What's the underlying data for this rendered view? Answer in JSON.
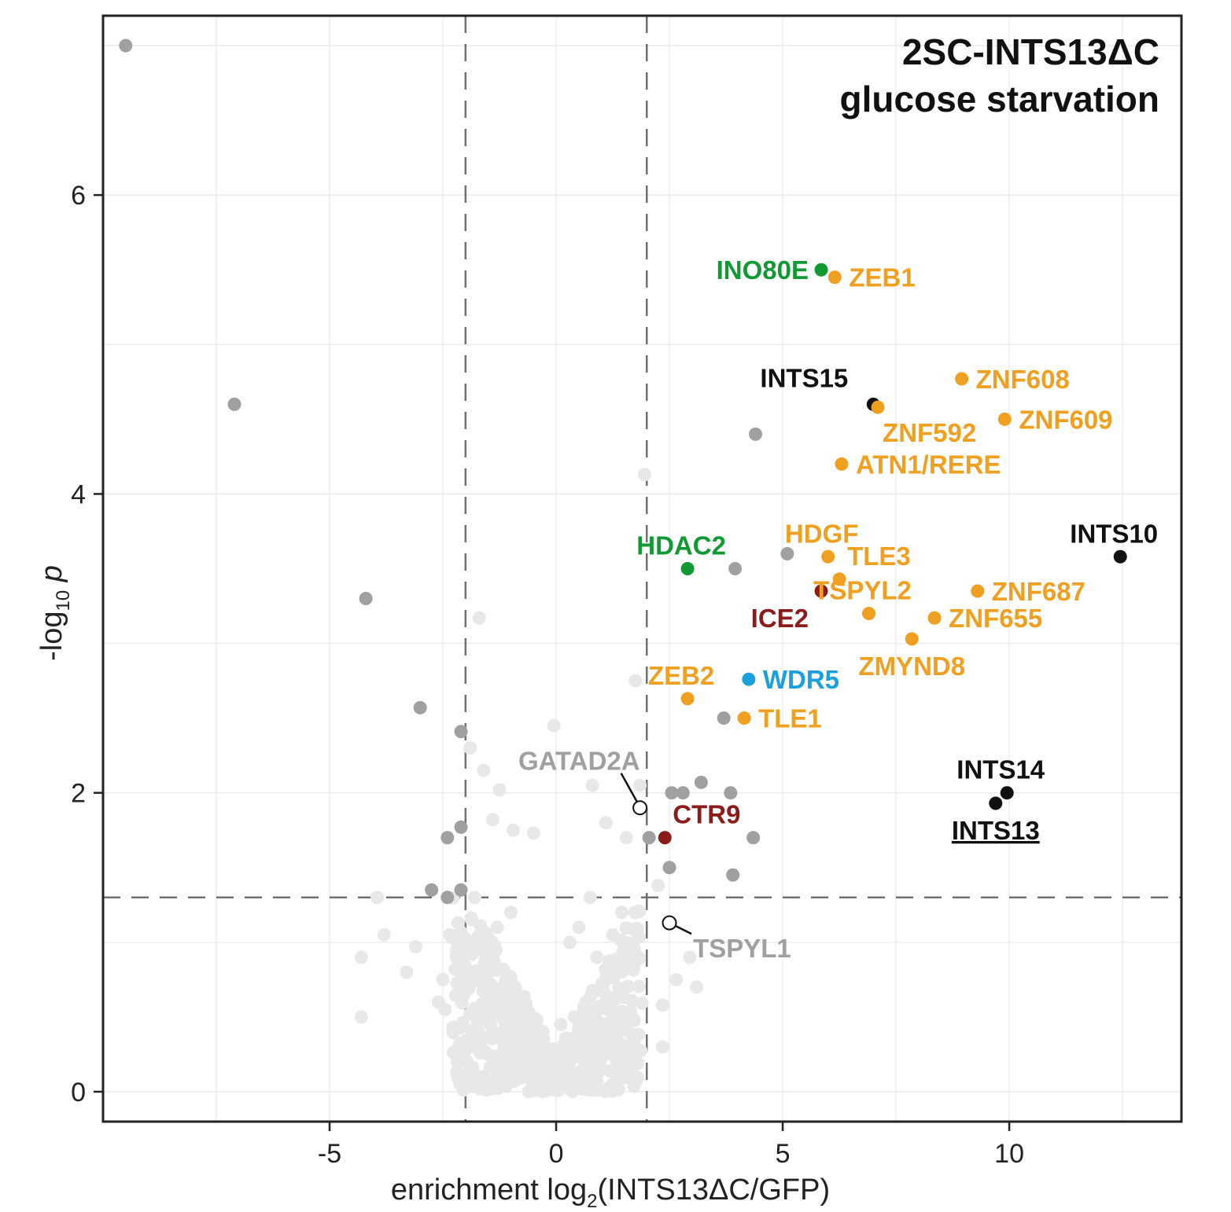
{
  "chart_data": {
    "type": "scatter",
    "title_lines": [
      "2SC-INTS13ΔC",
      "glucose starvation"
    ],
    "xlabel": {
      "main": "enrichment log",
      "sub": "2",
      "rest": "(INTS13ΔC/GFP)"
    },
    "ylabel": {
      "pre": "-log",
      "sub": "10",
      "post": " p"
    },
    "xlim": [
      -10,
      13.8
    ],
    "ylim": [
      -0.2,
      7.2
    ],
    "x_ticks": [
      {
        "value": -5,
        "label": "-5"
      },
      {
        "value": 0,
        "label": "0"
      },
      {
        "value": 5,
        "label": "5"
      },
      {
        "value": 10,
        "label": "10"
      }
    ],
    "y_ticks": [
      {
        "value": 0,
        "label": "0"
      },
      {
        "value": 2,
        "label": "2"
      },
      {
        "value": 4,
        "label": "4"
      },
      {
        "value": 6,
        "label": "6"
      }
    ],
    "grid": true,
    "thresholds": {
      "x": [
        -2,
        2
      ],
      "y": 1.3
    },
    "colors": {
      "background_points": "#e8e8e8",
      "sig_gray": "#a0a0a0",
      "black": "#111111",
      "orange": "#f0a020",
      "green": "#119933",
      "blue": "#1aa0dc",
      "red": "#8b1c1c",
      "label_gray": "#a0a0a0",
      "threshold_line": "#707070",
      "grid": "#ececec"
    },
    "gray_points": [
      [
        -9.5,
        7.0
      ],
      [
        -7.1,
        4.6
      ],
      [
        -4.2,
        3.3
      ],
      [
        -3.0,
        2.57
      ],
      [
        -2.1,
        2.41
      ],
      [
        -2.1,
        1.77
      ],
      [
        -2.4,
        1.7
      ],
      [
        -2.75,
        1.35
      ],
      [
        -2.4,
        1.3
      ],
      [
        -2.1,
        1.35
      ],
      [
        2.05,
        1.7
      ],
      [
        2.5,
        1.5
      ],
      [
        2.55,
        2.0
      ],
      [
        2.8,
        2.0
      ],
      [
        3.2,
        2.07
      ],
      [
        3.85,
        2.0
      ],
      [
        4.35,
        1.7
      ],
      [
        3.9,
        1.45
      ],
      [
        3.7,
        2.5
      ],
      [
        3.95,
        3.5
      ],
      [
        5.1,
        3.6
      ],
      [
        4.4,
        4.4
      ]
    ],
    "background_points": [
      [
        -1.7,
        3.17
      ],
      [
        1.75,
        2.75
      ],
      [
        1.95,
        4.13
      ],
      [
        -1.9,
        2.3
      ],
      [
        -1.6,
        2.15
      ],
      [
        -1.25,
        2.02
      ],
      [
        -0.05,
        2.45
      ],
      [
        0.8,
        2.05
      ],
      [
        1.85,
        2.05
      ],
      [
        1.1,
        1.8
      ],
      [
        -1.4,
        1.82
      ],
      [
        -0.95,
        1.75
      ],
      [
        -0.5,
        1.73
      ],
      [
        0.75,
        1.3
      ],
      [
        1.55,
        1.7
      ],
      [
        2.25,
        1.38
      ],
      [
        1.45,
        1.2
      ],
      [
        2.95,
        0.9
      ],
      [
        2.65,
        0.75
      ],
      [
        3.1,
        0.7
      ],
      [
        2.35,
        0.58
      ],
      [
        2.35,
        0.3
      ],
      [
        1.65,
        0.5
      ],
      [
        -4.3,
        0.5
      ],
      [
        -4.3,
        0.9
      ],
      [
        -3.95,
        1.3
      ],
      [
        -3.8,
        1.05
      ],
      [
        -3.3,
        0.8
      ],
      [
        -3.1,
        0.97
      ],
      [
        -2.35,
        1.05
      ],
      [
        -2.5,
        0.75
      ],
      [
        -2.45,
        0.55
      ],
      [
        -1.3,
        1.1
      ],
      [
        -1.0,
        1.2
      ],
      [
        0.5,
        1.1
      ],
      [
        0.3,
        1.0
      ],
      [
        1.25,
        1.05
      ],
      [
        -2.2,
        0.9
      ],
      [
        -2.6,
        0.6
      ],
      [
        1.1,
        0.6
      ],
      [
        1.7,
        0.25
      ],
      [
        -0.1,
        0.2
      ],
      [
        -1.8,
        1.3
      ],
      [
        -1.9,
        1.0
      ],
      [
        -1.5,
        0.8
      ],
      [
        -1.6,
        0.55
      ],
      [
        1.3,
        0.3
      ],
      [
        0.9,
        0.9
      ],
      [
        0.4,
        0.5
      ],
      [
        -0.6,
        0.4
      ],
      [
        -0.9,
        0.7
      ],
      [
        0.3,
        0.2
      ],
      [
        0.1,
        0.45
      ]
    ],
    "highlight_points": [
      {
        "gene": "INO80E",
        "x": 5.85,
        "y": 5.5,
        "color": "green",
        "label_side": "left"
      },
      {
        "gene": "ZEB1",
        "x": 6.15,
        "y": 5.45,
        "color": "orange",
        "label_side": "right"
      },
      {
        "gene": "INTS15",
        "x": 7.0,
        "y": 4.6,
        "color": "black",
        "label_side": "above-left"
      },
      {
        "gene": "ZNF608",
        "x": 8.95,
        "y": 4.77,
        "color": "orange",
        "label_side": "right"
      },
      {
        "gene": "ZNF592",
        "x": 7.1,
        "y": 4.58,
        "color": "orange",
        "label_side": "below-right"
      },
      {
        "gene": "ZNF609",
        "x": 9.9,
        "y": 4.5,
        "color": "orange",
        "label_side": "right"
      },
      {
        "gene": "ATN1/RERE",
        "x": 6.3,
        "y": 4.2,
        "color": "orange",
        "label_side": "right"
      },
      {
        "gene": "INTS10",
        "x": 12.45,
        "y": 3.58,
        "color": "black",
        "label_side": "above"
      },
      {
        "gene": "HDGF",
        "x": 6.0,
        "y": 3.58,
        "color": "orange",
        "label_side": "above"
      },
      {
        "gene": "TLE3",
        "x": 6.25,
        "y": 3.43,
        "color": "orange",
        "label_side": "above-right"
      },
      {
        "gene": "HDAC2",
        "x": 2.9,
        "y": 3.5,
        "color": "green",
        "label_side": "above"
      },
      {
        "gene": "ICE2",
        "x": 5.85,
        "y": 3.35,
        "color": "red",
        "label_side": "below-left"
      },
      {
        "gene": "TSPYL2",
        "x": 6.9,
        "y": 3.2,
        "color": "orange",
        "label_side": "above"
      },
      {
        "gene": "ZNF687",
        "x": 9.3,
        "y": 3.35,
        "color": "orange",
        "label_side": "right"
      },
      {
        "gene": "ZNF655",
        "x": 8.35,
        "y": 3.17,
        "color": "orange",
        "label_side": "right"
      },
      {
        "gene": "ZMYND8",
        "x": 7.85,
        "y": 3.03,
        "color": "orange",
        "label_side": "below"
      },
      {
        "gene": "ZEB2",
        "x": 2.9,
        "y": 2.63,
        "color": "orange",
        "label_side": "above"
      },
      {
        "gene": "WDR5",
        "x": 4.25,
        "y": 2.76,
        "color": "blue",
        "label_side": "right"
      },
      {
        "gene": "TLE1",
        "x": 4.15,
        "y": 2.5,
        "color": "orange",
        "label_side": "right"
      },
      {
        "gene": "INTS14",
        "x": 9.95,
        "y": 2.0,
        "color": "black",
        "label_side": "above"
      },
      {
        "gene": "INTS13",
        "x": 9.7,
        "y": 1.93,
        "color": "black",
        "label_side": "below",
        "underline": true
      },
      {
        "gene": "CTR9",
        "x": 2.4,
        "y": 1.7,
        "color": "red",
        "label_side": "above-right"
      },
      {
        "gene": "GATAD2A",
        "x": 1.85,
        "y": 1.9,
        "color": "label_gray",
        "label_side": "above-left",
        "open": true
      },
      {
        "gene": "TSPYL1",
        "x": 2.5,
        "y": 1.13,
        "color": "label_gray",
        "label_side": "below-right",
        "open": true
      }
    ]
  }
}
